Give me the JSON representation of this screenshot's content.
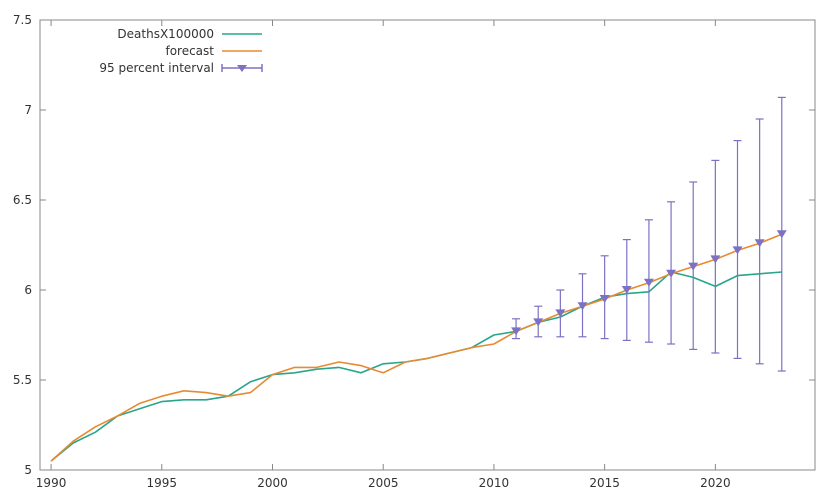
{
  "chart_data": {
    "type": "line",
    "title": "",
    "xlabel": "",
    "ylabel": "",
    "xlim": [
      1989.5,
      2024.5
    ],
    "ylim": [
      5,
      7.5
    ],
    "x_ticks": [
      "1990",
      "1995",
      "2000",
      "2005",
      "2010",
      "2015",
      "2020"
    ],
    "y_ticks": [
      "5",
      "5.5",
      "6",
      "6.5",
      "7",
      "7.5"
    ],
    "grid": false,
    "legend_position": "top-left",
    "legend": [
      "DeathsX100000",
      "forecast",
      "95 percent interval"
    ],
    "series": [
      {
        "name": "DeathsX100000",
        "color": "#2aa58c",
        "x": [
          1990,
          1991,
          1992,
          1993,
          1994,
          1995,
          1996,
          1997,
          1998,
          1999,
          2000,
          2001,
          2002,
          2003,
          2004,
          2005,
          2006,
          2007,
          2008,
          2009,
          2010,
          2011,
          2012,
          2013,
          2014,
          2015,
          2016,
          2017,
          2018,
          2019,
          2020,
          2021,
          2022,
          2023
        ],
        "values": [
          5.05,
          5.15,
          5.21,
          5.3,
          5.34,
          5.38,
          5.39,
          5.39,
          5.41,
          5.49,
          5.53,
          5.54,
          5.56,
          5.57,
          5.54,
          5.59,
          5.6,
          5.62,
          5.65,
          5.68,
          5.75,
          5.77,
          5.82,
          5.85,
          5.91,
          5.96,
          5.98,
          5.99,
          6.1,
          6.07,
          6.02,
          6.08,
          6.09,
          6.1
        ]
      },
      {
        "name": "forecast",
        "color": "#e88a30",
        "x": [
          1990,
          1991,
          1992,
          1993,
          1994,
          1995,
          1996,
          1997,
          1998,
          1999,
          2000,
          2001,
          2002,
          2003,
          2004,
          2005,
          2006,
          2007,
          2008,
          2009,
          2010,
          2011,
          2012,
          2013,
          2014,
          2015,
          2016,
          2017,
          2018,
          2019,
          2020,
          2021,
          2022,
          2023
        ],
        "values": [
          5.05,
          5.16,
          5.24,
          5.3,
          5.37,
          5.41,
          5.44,
          5.43,
          5.41,
          5.43,
          5.53,
          5.57,
          5.57,
          5.6,
          5.58,
          5.54,
          5.6,
          5.62,
          5.65,
          5.68,
          5.7,
          5.77,
          5.82,
          5.87,
          5.91,
          5.95,
          6.0,
          6.04,
          6.09,
          6.13,
          6.17,
          6.22,
          6.26,
          6.31
        ]
      },
      {
        "name": "95 percent interval",
        "color": "#7b72c4",
        "x": [
          2011,
          2012,
          2013,
          2014,
          2015,
          2016,
          2017,
          2018,
          2019,
          2020,
          2021,
          2022,
          2023
        ],
        "center": [
          5.77,
          5.82,
          5.87,
          5.91,
          5.95,
          6.0,
          6.04,
          6.09,
          6.13,
          6.17,
          6.22,
          6.26,
          6.31
        ],
        "lower": [
          5.73,
          5.74,
          5.74,
          5.74,
          5.73,
          5.72,
          5.71,
          5.7,
          5.67,
          5.65,
          5.62,
          5.59,
          5.55
        ],
        "upper": [
          5.84,
          5.91,
          6.0,
          6.09,
          6.19,
          6.28,
          6.39,
          6.49,
          6.6,
          6.72,
          6.83,
          6.95,
          7.07
        ]
      }
    ]
  }
}
